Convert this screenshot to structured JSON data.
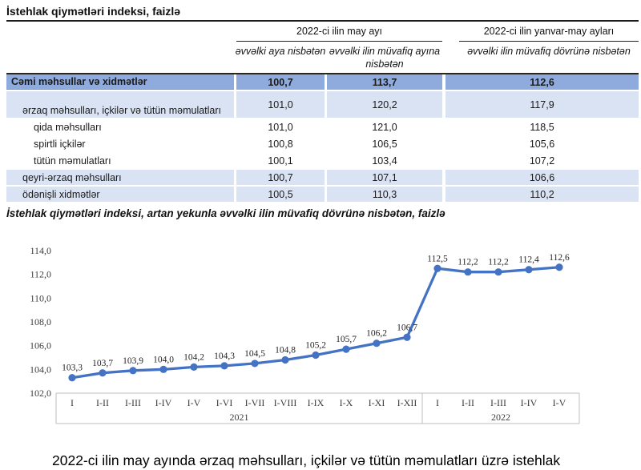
{
  "table": {
    "title": "İstehlak qiymətləri indeksi, faizlə",
    "group_headers": [
      "2022-ci ilin may ayı",
      "2022-ci ilin yanvar-may ayları"
    ],
    "sub_headers": [
      "əvvəlki aya nisbətən",
      "əvvəlki ilin müvafiq ayına nisbətən",
      "əvvəlki ilin müvafiq dövrünə nisbətən"
    ],
    "rows": [
      {
        "label": "Cəmi məhsullar və xidmətlər",
        "values": [
          "100,7",
          "113,7",
          "112,6"
        ],
        "style": "total",
        "indent": 1,
        "two_line": false
      },
      {
        "label": "ərzaq məhsulları, içkilər və tütün məmulatları",
        "values": [
          "101,0",
          "120,2",
          "117,9"
        ],
        "style": "band",
        "indent": 2,
        "two_line": true
      },
      {
        "label": "qida məhsulları",
        "values": [
          "101,0",
          "121,0",
          "118,5"
        ],
        "style": "plain",
        "indent": 3,
        "two_line": false
      },
      {
        "label": "spirtli içkilər",
        "values": [
          "100,8",
          "106,5",
          "105,6"
        ],
        "style": "plain",
        "indent": 3,
        "two_line": false
      },
      {
        "label": "tütün məmulatları",
        "values": [
          "100,1",
          "103,4",
          "107,2"
        ],
        "style": "plain",
        "indent": 3,
        "two_line": false
      },
      {
        "label": "qeyri-ərzaq məhsulları",
        "values": [
          "100,7",
          "107,1",
          "106,6"
        ],
        "style": "band",
        "indent": 2,
        "two_line": false
      },
      {
        "label": "ödənişli xidmətlər",
        "values": [
          "100,5",
          "110,3",
          "110,2"
        ],
        "style": "band",
        "indent": 2,
        "two_line": false
      }
    ]
  },
  "chart": {
    "title": "İstehlak qiymətləri indeksi, artan yekunla əvvəlki ilin müvafiq dövrünə nisbətən, faizlə"
  },
  "chart_data": {
    "type": "line",
    "categories": [
      "I",
      "I-II",
      "I-III",
      "I-IV",
      "I-V",
      "I-VI",
      "I-VII",
      "I-VIII",
      "I-IX",
      "I-X",
      "I-XI",
      "I-XII",
      "I",
      "I-II",
      "I-III",
      "I-IV",
      "I-V"
    ],
    "values": [
      103.3,
      103.7,
      103.9,
      104.0,
      104.2,
      104.3,
      104.5,
      104.8,
      105.2,
      105.7,
      106.2,
      106.7,
      112.5,
      112.2,
      112.2,
      112.4,
      112.6
    ],
    "x_groups": [
      {
        "label": "2021",
        "count": 12
      },
      {
        "label": "2022",
        "count": 5
      }
    ],
    "title": "",
    "xlabel": "",
    "ylabel": "",
    "ylim": [
      102.0,
      114.0
    ],
    "ytick_step": 2.0,
    "decimal_separator": ",",
    "grid": false,
    "legend": false,
    "show_data_labels": true
  },
  "paragraph": {
    "text": "2022-ci ilin may ayında ərzaq məhsulları, içkilər və tütün məmulatları üzrə istehlak"
  },
  "colors": {
    "total_row_bg": "#8faadc",
    "band_row_bg": "#dae3f3",
    "line_color": "#4472c4",
    "marker_color": "#4472c4",
    "axis_line": "#bfbfbf",
    "rule_color": "#262626",
    "chart_text": "#3d3d3d"
  }
}
